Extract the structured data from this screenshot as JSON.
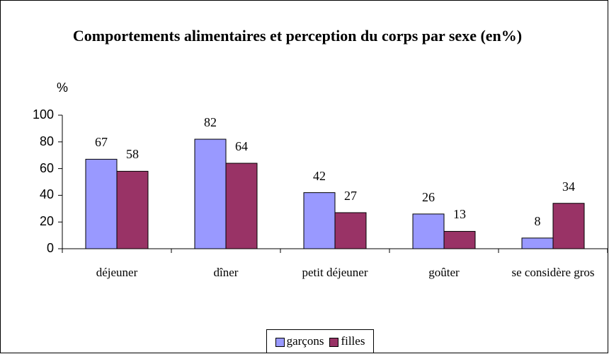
{
  "chart_data": {
    "type": "bar",
    "title": "Comportements alimentaires et perception du corps par sexe (en%)",
    "y_label": "%",
    "categories": [
      "déjeuner",
      "dîner",
      "petit déjeuner",
      "goûter",
      "se considère gros"
    ],
    "series": [
      {
        "name": "garçons",
        "color": "#9999ff",
        "values": [
          67,
          82,
          42,
          26,
          8
        ]
      },
      {
        "name": "filles",
        "color": "#993366",
        "values": [
          58,
          64,
          27,
          13,
          34
        ]
      }
    ],
    "ylim": [
      0,
      100
    ],
    "yticks": [
      0,
      20,
      40,
      60,
      80,
      100
    ],
    "grid": false,
    "legend": "bottom"
  }
}
